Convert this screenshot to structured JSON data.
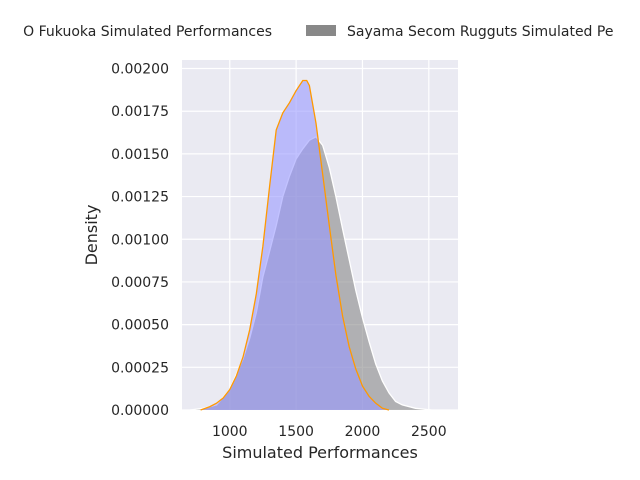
{
  "chart_data": {
    "type": "area",
    "title": "",
    "xlabel": "Simulated Performances",
    "ylabel": "Density",
    "xlim": [
      640,
      2720
    ],
    "ylim": [
      0,
      0.00205
    ],
    "grid": true,
    "legend_position": "top",
    "x_ticks": [
      "1000",
      "1500",
      "2000",
      "2500"
    ],
    "y_ticks": [
      "0.00000",
      "0.00025",
      "0.00050",
      "0.00075",
      "0.00100",
      "0.00125",
      "0.00150",
      "0.00175",
      "0.00200"
    ],
    "x_tick_values": [
      1000,
      1500,
      2000,
      2500
    ],
    "y_tick_values": [
      0,
      0.00025,
      0.0005,
      0.00075,
      0.001,
      0.00125,
      0.0015,
      0.00175,
      0.002
    ],
    "series": [
      {
        "name": "O Fukuoka Simulated Performances",
        "fill": "#9999ff",
        "line": "#ff9900",
        "points": [
          [
            780,
            0
          ],
          [
            850,
            2e-05
          ],
          [
            900,
            4e-05
          ],
          [
            950,
            7e-05
          ],
          [
            1000,
            0.00012
          ],
          [
            1050,
            0.0002
          ],
          [
            1100,
            0.00031
          ],
          [
            1150,
            0.00047
          ],
          [
            1200,
            0.00068
          ],
          [
            1250,
            0.00096
          ],
          [
            1300,
            0.00131
          ],
          [
            1350,
            0.00164
          ],
          [
            1400,
            0.00174
          ],
          [
            1450,
            0.0018
          ],
          [
            1500,
            0.00187
          ],
          [
            1550,
            0.00193
          ],
          [
            1580,
            0.00193
          ],
          [
            1600,
            0.0019
          ],
          [
            1650,
            0.00168
          ],
          [
            1700,
            0.00138
          ],
          [
            1750,
            0.00108
          ],
          [
            1800,
            0.00079
          ],
          [
            1850,
            0.00055
          ],
          [
            1900,
            0.00037
          ],
          [
            1950,
            0.00024
          ],
          [
            2000,
            0.00014
          ],
          [
            2050,
            8e-05
          ],
          [
            2100,
            4e-05
          ],
          [
            2150,
            1e-05
          ],
          [
            2200,
            0
          ]
        ]
      },
      {
        "name": "Sayama Secom Rugguts Simulated Pe",
        "fill": "#888888",
        "line": "#ffffff",
        "points": [
          [
            700,
            0
          ],
          [
            800,
            1e-05
          ],
          [
            900,
            3e-05
          ],
          [
            1000,
            0.00012
          ],
          [
            1100,
            0.0003
          ],
          [
            1150,
            0.00042
          ],
          [
            1200,
            0.00057
          ],
          [
            1250,
            0.00078
          ],
          [
            1300,
            0.00093
          ],
          [
            1350,
            0.00108
          ],
          [
            1400,
            0.00125
          ],
          [
            1450,
            0.00137
          ],
          [
            1500,
            0.00147
          ],
          [
            1550,
            0.00153
          ],
          [
            1600,
            0.00158
          ],
          [
            1650,
            0.0016
          ],
          [
            1700,
            0.00155
          ],
          [
            1750,
            0.00142
          ],
          [
            1800,
            0.00125
          ],
          [
            1850,
            0.00106
          ],
          [
            1900,
            0.00088
          ],
          [
            1950,
            0.0007
          ],
          [
            2000,
            0.00054
          ],
          [
            2050,
            0.0004
          ],
          [
            2100,
            0.00027
          ],
          [
            2150,
            0.00017
          ],
          [
            2200,
            0.0001
          ],
          [
            2250,
            5e-05
          ],
          [
            2300,
            3e-05
          ],
          [
            2400,
            1e-05
          ],
          [
            2520,
            0
          ]
        ]
      }
    ]
  }
}
